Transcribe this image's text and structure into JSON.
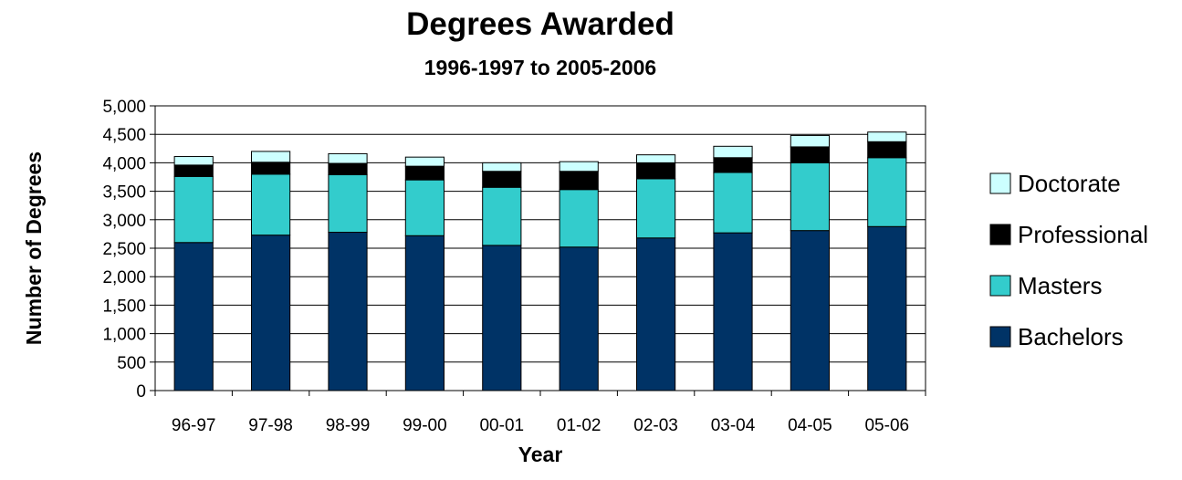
{
  "chart_data": {
    "type": "bar",
    "stacked": true,
    "title": "Degrees Awarded",
    "subtitle": "1996-1997 to 2005-2006",
    "xlabel": "Year",
    "ylabel": "Number of Degrees",
    "ylim": [
      0,
      5000
    ],
    "ytick_step": 500,
    "ytick_labels": [
      "0",
      "500",
      "1,000",
      "1,500",
      "2,000",
      "2,500",
      "3,000",
      "3,500",
      "4,000",
      "4,500",
      "5,000"
    ],
    "grid": true,
    "legend_position": "right",
    "categories": [
      "96-97",
      "97-98",
      "98-99",
      "99-00",
      "00-01",
      "01-02",
      "02-03",
      "03-04",
      "04-05",
      "05-06"
    ],
    "series": [
      {
        "name": "Bachelors",
        "color": "#003366",
        "values": [
          2600,
          2730,
          2780,
          2720,
          2550,
          2520,
          2680,
          2770,
          2810,
          2880
        ]
      },
      {
        "name": "Masters",
        "color": "#33CCCC",
        "values": [
          1160,
          1070,
          1010,
          980,
          1020,
          1010,
          1040,
          1060,
          1190,
          1210
        ]
      },
      {
        "name": "Professional",
        "color": "#000000",
        "values": [
          200,
          210,
          200,
          240,
          280,
          320,
          280,
          260,
          280,
          280
        ]
      },
      {
        "name": "Doctorate",
        "color": "#CCFFFF",
        "values": [
          150,
          190,
          170,
          160,
          150,
          170,
          140,
          200,
          200,
          170
        ]
      }
    ]
  }
}
